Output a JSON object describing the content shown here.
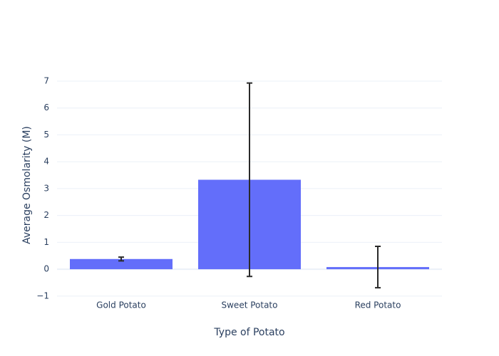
{
  "chart_data": {
    "type": "bar",
    "x_label": "Type of Potato",
    "y_label": "Average Osmolarity (M)",
    "categories": [
      "Gold Potato",
      "Sweet Potato",
      "Red Potato"
    ],
    "values": [
      0.38,
      3.33,
      0.08
    ],
    "errors": [
      0.07,
      3.6,
      0.77
    ],
    "color": "#636efa",
    "ylim": [
      -1.11,
      7.37
    ],
    "yticks": [
      {
        "value": -1,
        "label": "−1"
      },
      0,
      1,
      2,
      3,
      4,
      5,
      6,
      7
    ],
    "grid": true
  }
}
